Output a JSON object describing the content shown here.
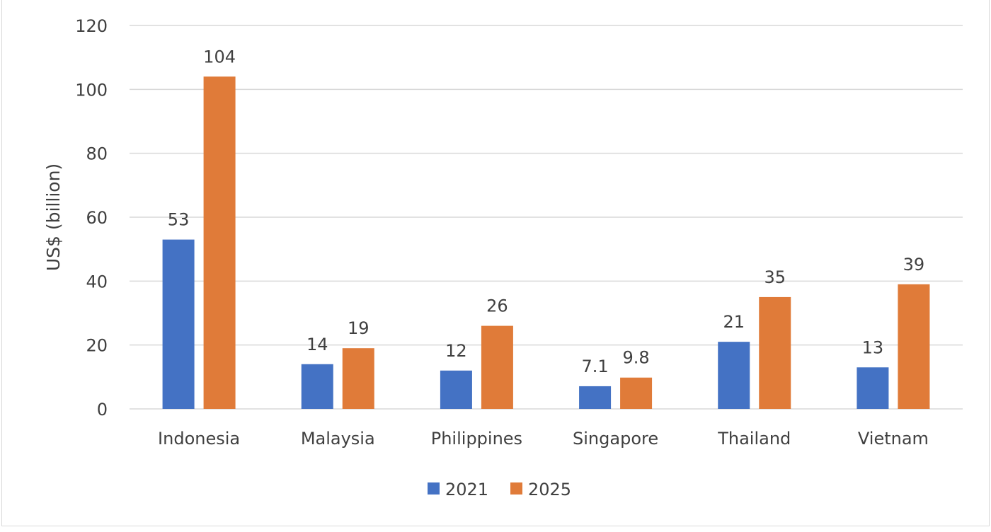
{
  "chart_data": {
    "type": "bar",
    "title": "",
    "xlabel": "",
    "ylabel": "US$ (billion)",
    "ylim": [
      0,
      120
    ],
    "yticks": [
      0,
      20,
      40,
      60,
      80,
      100,
      120
    ],
    "grid": true,
    "legend_position": "bottom",
    "categories": [
      "Indonesia",
      "Malaysia",
      "Philippines",
      "Singapore",
      "Thailand",
      "Vietnam"
    ],
    "series": [
      {
        "name": "2021",
        "color": "#4472C4",
        "values": [
          53,
          14,
          12,
          7.1,
          21,
          13
        ],
        "labels": [
          "53",
          "14",
          "12",
          "7.1",
          "21",
          "13"
        ]
      },
      {
        "name": "2025",
        "color": "#E07B39",
        "values": [
          104,
          19,
          26,
          9.8,
          35,
          39
        ],
        "labels": [
          "104",
          "19",
          "26",
          "9.8",
          "35",
          "39"
        ]
      }
    ]
  }
}
